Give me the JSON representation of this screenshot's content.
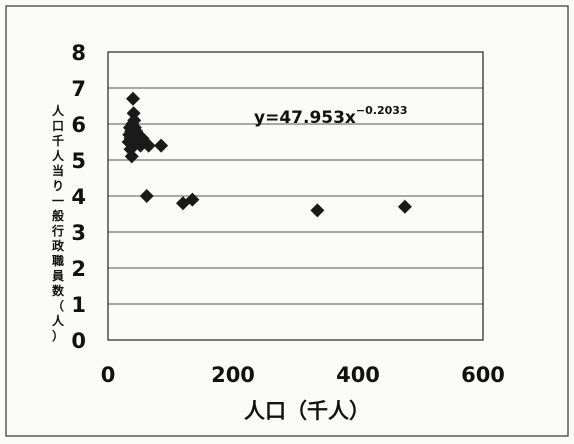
{
  "chart_data": {
    "type": "scatter",
    "xlabel": "人口（千人）",
    "ylabel": "人口千人当り一般行政職員数（人）",
    "xlim": [
      0,
      600
    ],
    "ylim": [
      0,
      8
    ],
    "xticks": [
      0,
      200,
      400,
      600
    ],
    "yticks": [
      0,
      1,
      2,
      3,
      4,
      5,
      6,
      7,
      8
    ],
    "grid": "horizontal",
    "marker": "diamond",
    "colors": {
      "marker": "#1a1a1a",
      "trendline": "#1a1a1a",
      "grid": "#555555"
    },
    "series": [
      {
        "x": [
          33,
          34,
          35,
          36,
          36,
          37,
          38,
          38,
          39,
          40,
          41,
          42,
          43,
          44,
          45,
          46,
          47,
          50,
          52,
          55,
          58,
          62,
          65,
          85,
          120,
          135,
          335,
          475
        ],
        "y": [
          5.5,
          5.7,
          5.9,
          5.3,
          5.6,
          5.8,
          5.1,
          5.5,
          6.0,
          6.7,
          6.3,
          6.1,
          5.9,
          5.6,
          5.8,
          5.7,
          5.5,
          5.6,
          5.4,
          5.6,
          5.5,
          4.0,
          5.4,
          5.4,
          3.8,
          3.9,
          3.6,
          3.7
        ]
      }
    ],
    "trendline": {
      "type": "power",
      "a": 47.953,
      "b": -0.2033,
      "x_range": [
        45,
        475
      ],
      "equation_main": "y=47.953x",
      "equation_exponent": "−0.2033"
    }
  }
}
